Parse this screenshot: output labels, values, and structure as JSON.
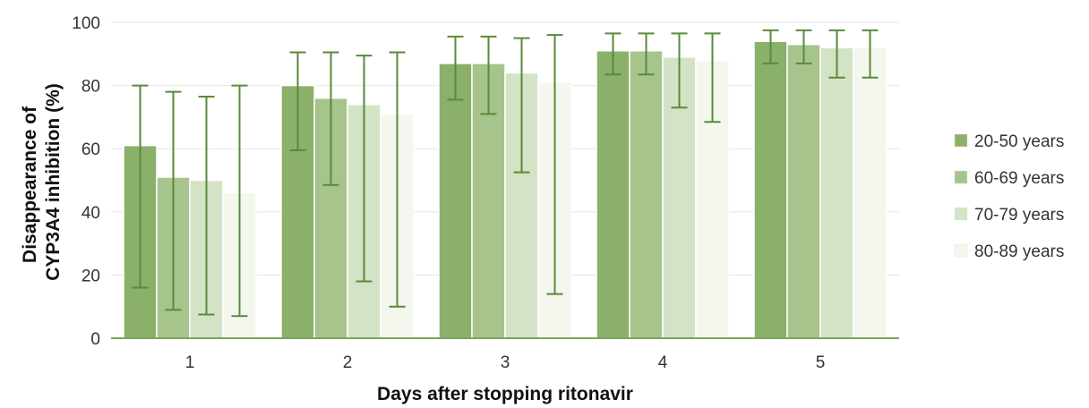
{
  "chart_data": {
    "type": "bar",
    "title": "",
    "xlabel": "Days after stopping ritonavir",
    "ylabel_lines": [
      "Disappearance of",
      "CYP3A4 inhibition (%)"
    ],
    "ylim": [
      0,
      100
    ],
    "yticks": [
      0,
      20,
      40,
      60,
      80,
      100
    ],
    "categories": [
      "1",
      "2",
      "3",
      "4",
      "5"
    ],
    "legend_position": "right",
    "grid": true,
    "series": [
      {
        "name": "20-50 years",
        "color": "#8bb06a",
        "values": [
          61,
          80,
          87,
          91,
          94
        ],
        "err_low": [
          16,
          59.5,
          75.5,
          83.5,
          87
        ],
        "err_high": [
          80,
          90.5,
          95.5,
          96.5,
          97.5
        ]
      },
      {
        "name": "60-69 years",
        "color": "#a6c48c",
        "values": [
          51,
          76,
          87,
          91,
          93
        ],
        "err_low": [
          9,
          48.5,
          71,
          83.5,
          87
        ],
        "err_high": [
          78,
          90.5,
          95.5,
          96.5,
          97.5
        ]
      },
      {
        "name": "70-79 years",
        "color": "#d4e2c6",
        "values": [
          50,
          74,
          84,
          89,
          92
        ],
        "err_low": [
          7.5,
          18,
          52.5,
          73,
          82.5
        ],
        "err_high": [
          76.5,
          89.5,
          95,
          96.5,
          97.5
        ]
      },
      {
        "name": "80-89 years",
        "color": "#f3f7ee",
        "values": [
          46,
          71,
          81,
          88,
          92
        ],
        "err_low": [
          7,
          10,
          14,
          68.5,
          82.5
        ],
        "err_high": [
          80,
          90.5,
          96,
          96.5,
          97.5
        ]
      }
    ],
    "colors": {
      "error_bar": "#5a8a3a",
      "axis": "#7aa65a",
      "grid": "#e6e6e6",
      "bar_border": "#ffffff"
    }
  }
}
